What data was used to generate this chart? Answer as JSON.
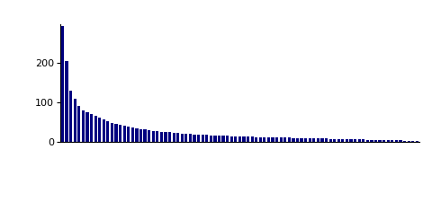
{
  "n_tissues": 87,
  "bar_color": "#000080",
  "background_color": "#ffffff",
  "ylim": [
    0,
    300
  ],
  "yticks": [
    0,
    100,
    200
  ],
  "bar_values": [
    295,
    205,
    130,
    110,
    90,
    80,
    75,
    70,
    65,
    62,
    57,
    52,
    48,
    45,
    42,
    40,
    38,
    36,
    34,
    32,
    30,
    29,
    27,
    26,
    25,
    24,
    23,
    22,
    21,
    20,
    19,
    18.5,
    18,
    17.5,
    17,
    16.5,
    16,
    15.5,
    15,
    14.5,
    14,
    13.5,
    13,
    12.5,
    12,
    11.8,
    11.5,
    11.2,
    11,
    10.8,
    10.5,
    10.2,
    10,
    9.8,
    9.5,
    9.2,
    9,
    8.8,
    8.5,
    8.2,
    8,
    7.8,
    7.5,
    7.2,
    7,
    6.8,
    6.5,
    6.2,
    6,
    5.8,
    5.5,
    5.2,
    5,
    4.8,
    4.5,
    4.2,
    4,
    3.8,
    3.5,
    3.2,
    3,
    2.8,
    2.5,
    2.2,
    2,
    1.8,
    1.5
  ]
}
